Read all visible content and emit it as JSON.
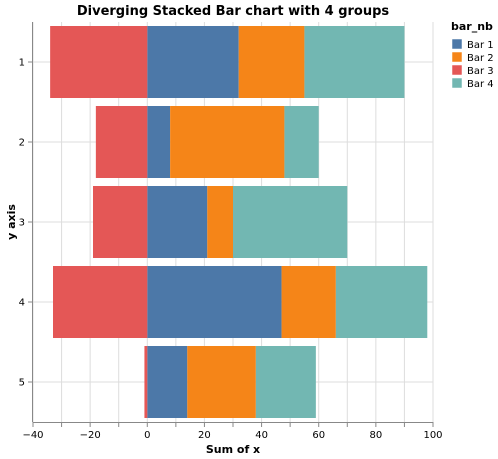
{
  "chart_data": {
    "type": "bar",
    "orientation": "horizontal",
    "stacking": "diverging",
    "title": "Diverging Stacked Bar chart with 4 groups",
    "xlabel": "Sum of x",
    "ylabel": "y axis",
    "xlim": [
      -40,
      100
    ],
    "x_ticks": [
      -40,
      -20,
      0,
      20,
      40,
      60,
      80,
      100
    ],
    "x_tick_labels": [
      "−40",
      "−20",
      "0",
      "20",
      "40",
      "60",
      "80",
      "100"
    ],
    "categories": [
      "1",
      "2",
      "3",
      "4",
      "5"
    ],
    "legend_title": "bar_nb",
    "legend_position": "top-right",
    "grid": true,
    "series": [
      {
        "name": "Bar 1",
        "color": "#4c78a8",
        "values": [
          32,
          8,
          21,
          47,
          14
        ]
      },
      {
        "name": "Bar 2",
        "color": "#f58518",
        "values": [
          23,
          40,
          9,
          19,
          24
        ]
      },
      {
        "name": "Bar 3",
        "color": "#e45756",
        "values": [
          -34,
          -18,
          -19,
          -33,
          -1
        ]
      },
      {
        "name": "Bar 4",
        "color": "#72b7b2",
        "values": [
          35,
          12,
          40,
          32,
          21
        ]
      }
    ]
  }
}
